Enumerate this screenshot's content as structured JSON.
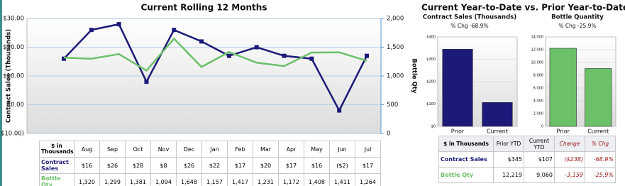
{
  "chart_data": [
    {
      "type": "line",
      "title": "Current Rolling 12 Months",
      "y_label": "Contract Sales (Thousands)",
      "y2_label": "Bottle Qty",
      "table_header": "$ in Thousands",
      "categories": [
        "Aug",
        "Sep",
        "Oct",
        "Nov",
        "Dec",
        "Jan",
        "Feb",
        "Mar",
        "Apr",
        "May",
        "Jun",
        "Jul"
      ],
      "series": [
        {
          "name": "Contract Sales",
          "color": "#1c1a78",
          "marker": "square",
          "values": [
            16,
            26,
            28,
            8,
            26,
            22,
            17,
            20,
            17,
            16,
            -2,
            17
          ],
          "value_labels": [
            "$16",
            "$26",
            "$28",
            "$8",
            "$26",
            "$22",
            "$17",
            "$20",
            "$17",
            "$16",
            "($2)",
            "$17"
          ]
        },
        {
          "name": "Bottle Qty",
          "color": "#6cc06a",
          "axis": "y2",
          "values": [
            1320,
            1299,
            1381,
            1094,
            1648,
            1157,
            1417,
            1231,
            1172,
            1408,
            1411,
            1264
          ],
          "value_labels": [
            "1,320",
            "1,299",
            "1,381",
            "1,094",
            "1,648",
            "1,157",
            "1,417",
            "1,231",
            "1,172",
            "1,408",
            "1,411",
            "1,264"
          ]
        }
      ],
      "ylim": [
        -10,
        30
      ],
      "yticks": [
        {
          "value": -10,
          "label": "($10.00)"
        },
        {
          "value": 0,
          "label": "$0.00"
        },
        {
          "value": 10,
          "label": "$10.00"
        },
        {
          "value": 20,
          "label": "$20.00"
        },
        {
          "value": 30,
          "label": "$30.00"
        }
      ],
      "y2lim": [
        0,
        2000
      ],
      "y2ticks": [
        0,
        500,
        {
          "value": 1000,
          "label": "1,000"
        },
        {
          "value": 1500,
          "label": "1,500"
        },
        {
          "value": 2000,
          "label": "2,000"
        }
      ],
      "grid": true
    },
    {
      "type": "bar",
      "title": "Contract Sales (Thousands)",
      "subtitle": "% Chg -68.9%",
      "color": "#1c1a78",
      "categories": [
        "Prior",
        "Current"
      ],
      "values": [
        345,
        107
      ],
      "ylim": [
        0,
        400
      ],
      "yticks": [
        {
          "value": 0,
          "label": "$0"
        },
        {
          "value": 100,
          "label": "$100"
        },
        {
          "value": 200,
          "label": "$200"
        },
        {
          "value": 300,
          "label": "$300"
        },
        {
          "value": 400,
          "label": "$400"
        }
      ],
      "grid": true
    },
    {
      "type": "bar",
      "title": "Bottle Quantity",
      "subtitle": "% Chg -25.9%",
      "color": "#6cc06a",
      "categories": [
        "Prior",
        "Current"
      ],
      "values": [
        12219,
        9060
      ],
      "ylim": [
        0,
        14000
      ],
      "yticks": [
        0,
        {
          "value": 2000,
          "label": "2,000"
        },
        {
          "value": 4000,
          "label": "4,000"
        },
        {
          "value": 6000,
          "label": "6,000"
        },
        {
          "value": 8000,
          "label": "8,000"
        },
        {
          "value": 10000,
          "label": "10,000"
        },
        {
          "value": 12000,
          "label": "12,000"
        },
        {
          "value": 14000,
          "label": "14,000"
        }
      ],
      "grid": true
    }
  ],
  "ytd_title": "Current Year-to-Date vs. Prior Year-to-Date",
  "ytd_table": {
    "header": [
      "$ in Thousands",
      "Prior YTD",
      "Current YTD",
      "Change",
      "% Chg"
    ],
    "rows": [
      [
        "Contract Sales",
        "$345",
        "$107",
        "($238)",
        "-68.9%"
      ],
      [
        "Bottle Qty",
        "12,219",
        "9,060",
        "-3,159",
        "-25.9%"
      ]
    ]
  }
}
